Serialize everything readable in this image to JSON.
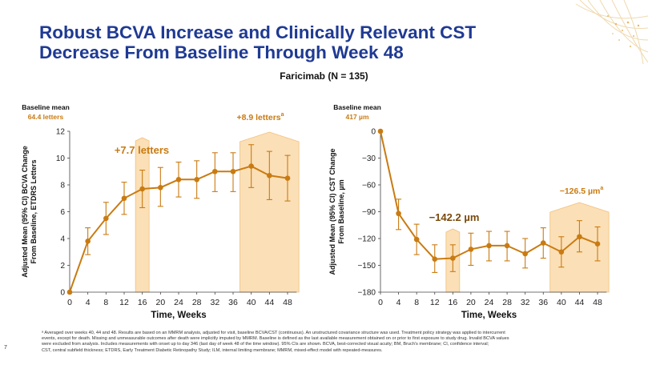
{
  "slide": {
    "title_line1": "Robust BCVA Increase and Clinically Relevant CST",
    "title_line2": "Decrease From Baseline Through Week 48",
    "subtitle": "Faricimab (N = 135)",
    "footnote_line1": "ᵃ Averaged over weeks 40, 44 and 48. Results are based on an MMRM analysis, adjusted for visit, baseline BCVA/CST (continuous). An unstructured covariance structure was used. Treatment policy strategy was applied to intercurrent",
    "footnote_line2": "events, except for death. Missing and unmeasurable outcomes after death were implicitly imputed by MMRM. Baseline is defined as the last available measurement obtained on or prior to first exposure to study drug. Invalid BCVA values",
    "footnote_line3": "were excluded from analysis. Includes measurements with onset up to day 346 (last day of week 48 of the time window). 95% CIs are shown. BCVA, best-corrected visual acuity; BM, Bruch's membrane; CI, confidence interval;",
    "footnote_line4": "CST, central subfield thickness; ETDRS, Early Treatment Diabetic Retinopathy Study; ILM, internal limiting membrane; MMRM, mixed-effect model with repeated-measures.",
    "page_number": "7"
  },
  "colors": {
    "accent": "#c97b12",
    "highlight": "#fbdfb6",
    "title": "#1f3a93"
  },
  "chart_data": [
    {
      "type": "line",
      "baseline_label": "Baseline mean",
      "baseline_value": "64.4 letters",
      "xlabel": "Time, Weeks",
      "ylabel_line1": "Adjusted Mean (95% CI) BCVA Change",
      "ylabel_line2": "From Baseline, ETDRS Letters",
      "x": [
        0,
        4,
        8,
        12,
        16,
        20,
        24,
        28,
        32,
        36,
        40,
        44,
        48
      ],
      "y": [
        0,
        3.8,
        5.5,
        7.0,
        7.7,
        7.8,
        8.4,
        8.4,
        9.0,
        9.0,
        9.4,
        8.7,
        8.5
      ],
      "ci_low": [
        0,
        2.8,
        4.3,
        5.8,
        6.3,
        6.4,
        7.1,
        7.0,
        7.5,
        7.5,
        7.8,
        6.9,
        6.8
      ],
      "ci_high": [
        0,
        4.8,
        6.7,
        8.2,
        9.1,
        9.3,
        9.7,
        9.8,
        10.4,
        10.4,
        11.0,
        10.5,
        10.2
      ],
      "ylim": [
        0,
        12
      ],
      "yticks": [
        0,
        2,
        4,
        6,
        8,
        10,
        12
      ],
      "annotation_week16": "+7.7 letters",
      "annotation_avg": "+8.9 letters",
      "annotation_avg_sup": "a"
    },
    {
      "type": "line",
      "baseline_label": "Baseline mean",
      "baseline_value": "417 µm",
      "xlabel": "Time, Weeks",
      "ylabel_line1": "Adjusted Mean (95% CI) CST Change",
      "ylabel_line2": "From Baseline, µm",
      "x": [
        0,
        4,
        8,
        12,
        16,
        20,
        24,
        28,
        32,
        36,
        40,
        44,
        48
      ],
      "y": [
        0,
        -92,
        -121,
        -143,
        -142,
        -132,
        -128,
        -128,
        -137,
        -125,
        -135,
        -118,
        -126
      ],
      "ci_low": [
        0,
        -110,
        -138,
        -158,
        -157,
        -150,
        -145,
        -145,
        -153,
        -142,
        -152,
        -135,
        -145
      ],
      "ci_high": [
        0,
        -76,
        -104,
        -127,
        -127,
        -114,
        -112,
        -112,
        -120,
        -108,
        -118,
        -100,
        -107
      ],
      "ylim": [
        -180,
        0
      ],
      "yticks": [
        0,
        -30,
        -60,
        -90,
        -120,
        -150,
        -180
      ],
      "ytick_labels": [
        "0",
        "−30",
        "−60",
        "−90",
        "−120",
        "−150",
        "−180"
      ],
      "annotation_week16": "−142.2 µm",
      "annotation_avg": "−126.5 µm",
      "annotation_avg_sup": "a"
    }
  ]
}
